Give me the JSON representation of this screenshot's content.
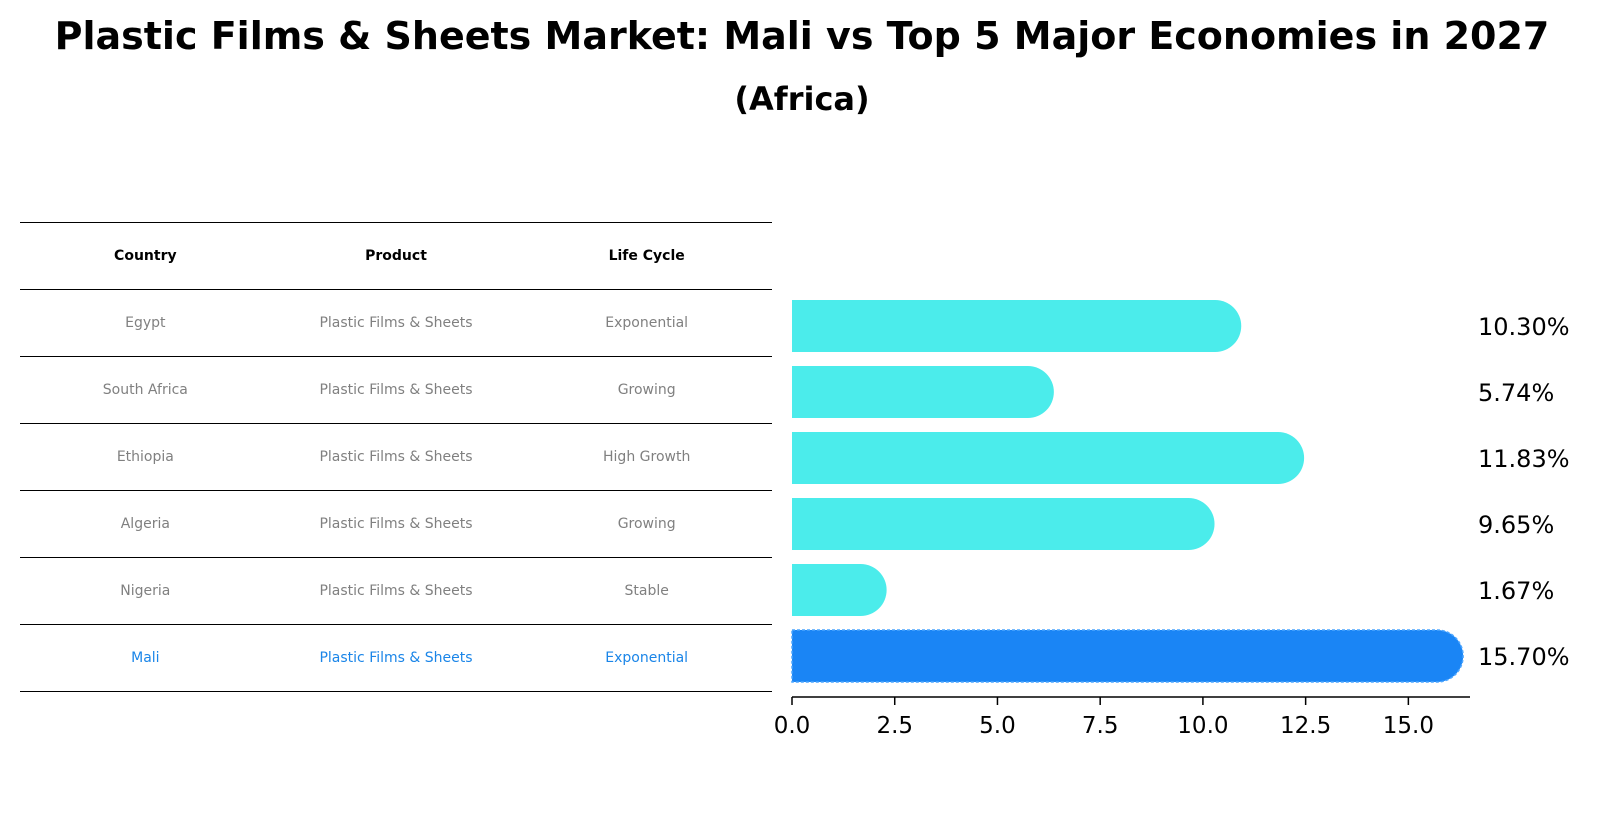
{
  "title": "Plastic Films & Sheets Market: Mali vs Top 5 Major Economies in 2027",
  "subtitle": "(Africa)",
  "table": {
    "headers": [
      "Country",
      "Product",
      "Life Cycle"
    ],
    "rows": [
      {
        "country": "Egypt",
        "product": "Plastic Films & Sheets",
        "life_cycle": "Exponential"
      },
      {
        "country": "South Africa",
        "product": "Plastic Films & Sheets",
        "life_cycle": "Growing"
      },
      {
        "country": "Ethiopia",
        "product": "Plastic Films & Sheets",
        "life_cycle": "High Growth"
      },
      {
        "country": "Algeria",
        "product": "Plastic Films & Sheets",
        "life_cycle": "Growing"
      },
      {
        "country": "Nigeria",
        "product": "Plastic Films & Sheets",
        "life_cycle": "Stable"
      },
      {
        "country": "Mali",
        "product": "Plastic Films & Sheets",
        "life_cycle": "Exponential"
      }
    ]
  },
  "chart_data": {
    "type": "bar",
    "orientation": "horizontal",
    "title": "Plastic Films & Sheets Market: Mali vs Top 5 Major Economies in 2027",
    "subtitle": "(Africa)",
    "categories": [
      "Egypt",
      "South Africa",
      "Ethiopia",
      "Algeria",
      "Nigeria",
      "Mali"
    ],
    "values": [
      10.3,
      5.74,
      11.83,
      9.65,
      1.67,
      15.7
    ],
    "value_labels": [
      "10.30%",
      "5.74%",
      "11.83%",
      "9.65%",
      "1.67%",
      "15.70%"
    ],
    "highlight": "Mali",
    "xlim": [
      0,
      16.5
    ],
    "xticks": [
      0.0,
      2.5,
      5.0,
      7.5,
      10.0,
      12.5,
      15.0
    ],
    "xtick_labels": [
      "0.0",
      "2.5",
      "5.0",
      "7.5",
      "10.0",
      "12.5",
      "15.0"
    ],
    "xlabel": "",
    "ylabel": "",
    "colors": {
      "bar": "#4beceb",
      "highlight": "#1a85f5",
      "highlight_text": "#1a85e8"
    }
  }
}
